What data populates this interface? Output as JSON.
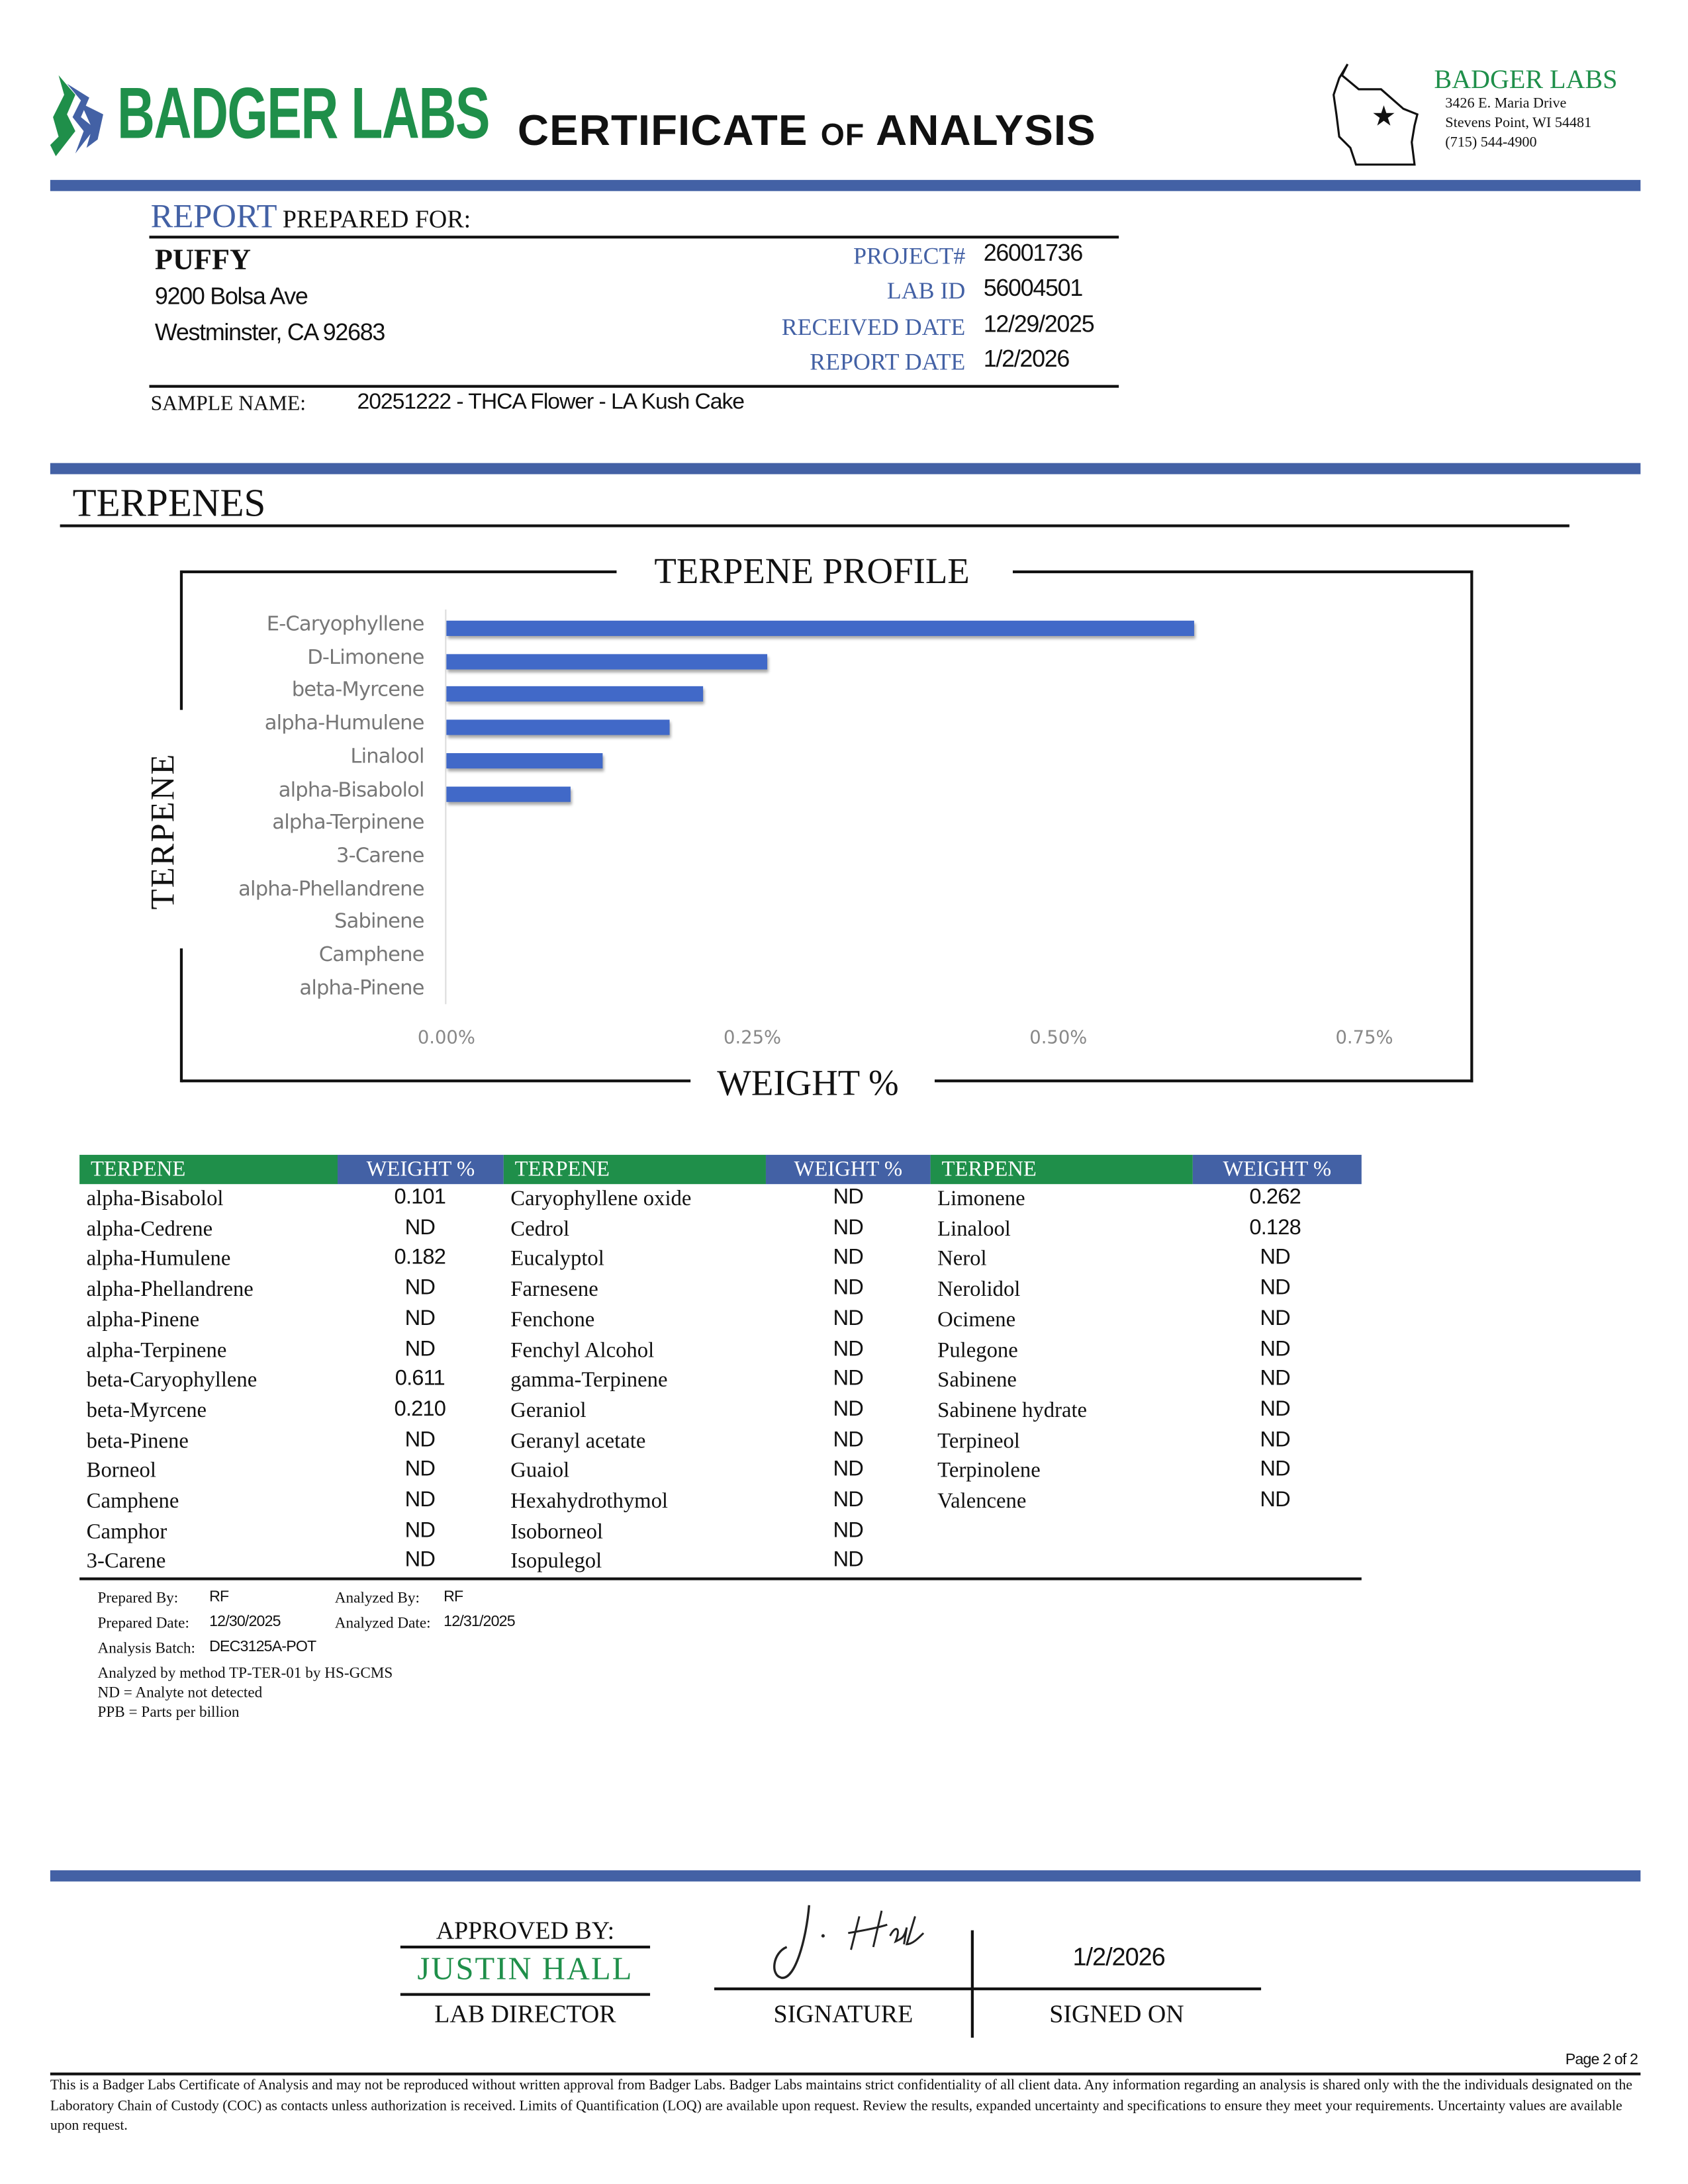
{
  "header": {
    "logo_text": "BADGER LABS",
    "title_main1": "CERTIFICATE",
    "title_of": "OF",
    "title_main2": "ANALYSIS",
    "lab_name": "BADGER LABS",
    "address1": "3426 E. Maria Drive",
    "address2": "Stevens Point, WI 54481",
    "phone": "(715) 544-4900",
    "colors": {
      "brand_blue": "#4361a5",
      "brand_green": "#1f8f4a"
    }
  },
  "report": {
    "heading_blue": "REPORT",
    "heading_rest": "PREPARED FOR:",
    "client_name": "PUFFY",
    "client_address1": "9200 Bolsa Ave",
    "client_address2": "Westminster, CA 92683",
    "fields": [
      {
        "label": "PROJECT#",
        "value": "26001736"
      },
      {
        "label": "LAB ID",
        "value": "56004501"
      },
      {
        "label": "RECEIVED DATE",
        "value": "12/29/2025"
      },
      {
        "label": "REPORT DATE",
        "value": "1/2/2026"
      }
    ],
    "sample_label": "SAMPLE NAME:",
    "sample_name": "20251222 - THCA Flower - LA Kush Cake"
  },
  "section_title": "TERPENES",
  "chart_data": {
    "type": "bar",
    "orientation": "horizontal",
    "title": "TERPENE PROFILE",
    "xlabel": "WEIGHT %",
    "ylabel": "TERPENE",
    "categories": [
      "E-Caryophyllene",
      "D-Limonene",
      "beta-Myrcene",
      "alpha-Humulene",
      "Linalool",
      "alpha-Bisabolol",
      "alpha-Terpinene",
      "3-Carene",
      "alpha-Phellandrene",
      "Sabinene",
      "Camphene",
      "alpha-Pinene"
    ],
    "values": [
      0.611,
      0.262,
      0.21,
      0.182,
      0.128,
      0.101,
      0,
      0,
      0,
      0,
      0,
      0
    ],
    "xlim": [
      0,
      0.75
    ],
    "xticks": [
      "0.00%",
      "0.25%",
      "0.50%",
      "0.75%"
    ],
    "grid": false,
    "bar_color": "#4169c8"
  },
  "table": {
    "header_terpene": "TERPENE",
    "header_weight": "WEIGHT %",
    "columns": [
      [
        [
          "alpha-Bisabolol",
          "0.101"
        ],
        [
          "alpha-Cedrene",
          "ND"
        ],
        [
          "alpha-Humulene",
          "0.182"
        ],
        [
          "alpha-Phellandrene",
          "ND"
        ],
        [
          "alpha-Pinene",
          "ND"
        ],
        [
          "alpha-Terpinene",
          "ND"
        ],
        [
          "beta-Caryophyllene",
          "0.611"
        ],
        [
          "beta-Myrcene",
          "0.210"
        ],
        [
          "beta-Pinene",
          "ND"
        ],
        [
          "Borneol",
          "ND"
        ],
        [
          "Camphene",
          "ND"
        ],
        [
          "Camphor",
          "ND"
        ],
        [
          "3-Carene",
          "ND"
        ]
      ],
      [
        [
          "Caryophyllene oxide",
          "ND"
        ],
        [
          "Cedrol",
          "ND"
        ],
        [
          "Eucalyptol",
          "ND"
        ],
        [
          "Farnesene",
          "ND"
        ],
        [
          "Fenchone",
          "ND"
        ],
        [
          "Fenchyl Alcohol",
          "ND"
        ],
        [
          "gamma-Terpinene",
          "ND"
        ],
        [
          "Geraniol",
          "ND"
        ],
        [
          "Geranyl acetate",
          "ND"
        ],
        [
          "Guaiol",
          "ND"
        ],
        [
          "Hexahydrothymol",
          "ND"
        ],
        [
          "Isoborneol",
          "ND"
        ],
        [
          "Isopulegol",
          "ND"
        ]
      ],
      [
        [
          "Limonene",
          "0.262"
        ],
        [
          "Linalool",
          "0.128"
        ],
        [
          "Nerol",
          "ND"
        ],
        [
          "Nerolidol",
          "ND"
        ],
        [
          "Ocimene",
          "ND"
        ],
        [
          "Pulegone",
          "ND"
        ],
        [
          "Sabinene",
          "ND"
        ],
        [
          "Sabinene hydrate",
          "ND"
        ],
        [
          "Terpineol",
          "ND"
        ],
        [
          "Terpinolene",
          "ND"
        ],
        [
          "Valencene",
          "ND"
        ]
      ]
    ]
  },
  "notes": {
    "prepared_by_label": "Prepared By:",
    "prepared_by": "RF",
    "analyzed_by_label": "Analyzed By:",
    "analyzed_by": "RF",
    "prepared_date_label": "Prepared Date:",
    "prepared_date": "12/30/2025",
    "analyzed_date_label": "Analyzed Date:",
    "analyzed_date": "12/31/2025",
    "batch_label": "Analysis Batch:",
    "batch": "DEC3125A-POT",
    "method": "Analyzed by method TP-TER-01 by HS-GCMS",
    "nd": "ND = Analyte not detected",
    "ppb": "PPB = Parts per billion"
  },
  "approval": {
    "approved_by_label": "APPROVED BY:",
    "approver": "JUSTIN HALL",
    "approver_title": "LAB DIRECTOR",
    "signature_label": "SIGNATURE",
    "signed_on_label": "SIGNED ON",
    "signed_date": "1/2/2026"
  },
  "footer": {
    "page": "Page 2 of 2",
    "disclaimer": "This is a Badger Labs Certificate of Analysis and may not be reproduced without written approval from Badger Labs. Badger Labs maintains strict confidentiality of all client data. Any information regarding an analysis is shared only with the the individuals designated on the Laboratory Chain of Custody (COC) as contacts unless authorization is received. Limits of Quantification (LOQ) are available upon request. Review the results, expanded uncertainty and specifications to ensure they meet your requirements. Uncertainty values are available upon request."
  }
}
